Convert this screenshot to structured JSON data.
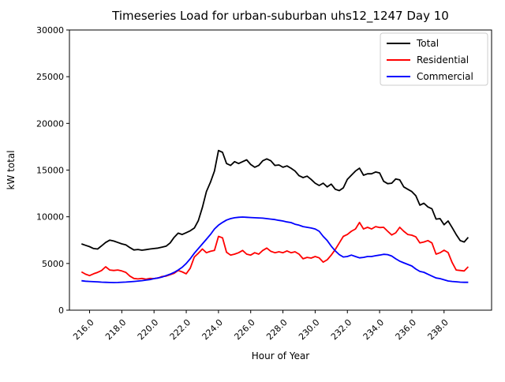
{
  "window": {
    "background": "#ffffff"
  },
  "chart_data": {
    "type": "line",
    "title": "Timeseries Load for urban-suburban uhs12_1247  Day 10",
    "xlabel": "Hour of Year",
    "ylabel": "kW total",
    "xlim": [
      214.75,
      240.95
    ],
    "ylim": [
      0,
      30000
    ],
    "grid": false,
    "legend_position": "upper right",
    "legend_border_color": "#cccccc",
    "axis_color": "#000000",
    "xticks": {
      "values": [
        216,
        218,
        220,
        222,
        224,
        226,
        228,
        230,
        232,
        234,
        236,
        238
      ],
      "labels": [
        "216.0",
        "218.0",
        "220.0",
        "222.0",
        "224.0",
        "226.0",
        "228.0",
        "230.0",
        "232.0",
        "234.0",
        "236.0",
        "238.0"
      ],
      "rotation": 45
    },
    "yticks": {
      "values": [
        0,
        5000,
        10000,
        15000,
        20000,
        25000,
        30000
      ],
      "labels": [
        "0",
        "5000",
        "10000",
        "15000",
        "20000",
        "25000",
        "30000"
      ]
    },
    "x": [
      215.5,
      215.75,
      216.0,
      216.25,
      216.5,
      216.75,
      217.0,
      217.25,
      217.5,
      217.75,
      218.0,
      218.25,
      218.5,
      218.75,
      219.0,
      219.25,
      219.5,
      219.75,
      220.0,
      220.25,
      220.5,
      220.75,
      221.0,
      221.25,
      221.5,
      221.75,
      222.0,
      222.25,
      222.5,
      222.75,
      223.0,
      223.25,
      223.5,
      223.75,
      224.0,
      224.25,
      224.5,
      224.75,
      225.0,
      225.25,
      225.5,
      225.75,
      226.0,
      226.25,
      226.5,
      226.75,
      227.0,
      227.25,
      227.5,
      227.75,
      228.0,
      228.25,
      228.5,
      228.75,
      229.0,
      229.25,
      229.5,
      229.75,
      230.0,
      230.25,
      230.5,
      230.75,
      231.0,
      231.25,
      231.5,
      231.75,
      232.0,
      232.25,
      232.5,
      232.75,
      233.0,
      233.25,
      233.5,
      233.75,
      234.0,
      234.25,
      234.5,
      234.75,
      235.0,
      235.25,
      235.5,
      235.75,
      236.0,
      236.25,
      236.5,
      236.75,
      237.0,
      237.25,
      237.5,
      237.75,
      238.0,
      238.25,
      238.5,
      238.75,
      239.0,
      239.25,
      239.5
    ],
    "series": [
      {
        "name": "Total",
        "color": "#000000",
        "values": [
          7100,
          6950,
          6800,
          6600,
          6550,
          6900,
          7250,
          7500,
          7400,
          7250,
          7100,
          7000,
          6700,
          6450,
          6500,
          6420,
          6480,
          6550,
          6600,
          6650,
          6750,
          6850,
          7200,
          7800,
          8250,
          8100,
          8300,
          8500,
          8800,
          9600,
          11000,
          12700,
          13700,
          14900,
          17100,
          16900,
          15700,
          15500,
          15900,
          15700,
          15900,
          16100,
          15600,
          15300,
          15500,
          16000,
          16200,
          16000,
          15500,
          15550,
          15300,
          15450,
          15200,
          14900,
          14400,
          14200,
          14350,
          14000,
          13600,
          13350,
          13600,
          13200,
          13500,
          12950,
          12800,
          13100,
          14000,
          14450,
          14900,
          15200,
          14450,
          14600,
          14600,
          14800,
          14700,
          13800,
          13550,
          13600,
          14050,
          13950,
          13200,
          12950,
          12700,
          12250,
          11250,
          11450,
          11050,
          10850,
          9750,
          9800,
          9150,
          9550,
          8850,
          8100,
          7450,
          7300,
          7800
        ]
      },
      {
        "name": "Residential",
        "color": "#ff0000",
        "values": [
          4100,
          3850,
          3700,
          3900,
          4050,
          4250,
          4650,
          4300,
          4250,
          4300,
          4200,
          4050,
          3650,
          3400,
          3350,
          3400,
          3320,
          3400,
          3380,
          3450,
          3600,
          3650,
          3800,
          3950,
          4250,
          4100,
          3900,
          4500,
          5700,
          6100,
          6550,
          6150,
          6300,
          6400,
          7900,
          7750,
          6200,
          5900,
          6000,
          6150,
          6400,
          6000,
          5900,
          6150,
          6000,
          6400,
          6650,
          6300,
          6150,
          6250,
          6150,
          6350,
          6150,
          6250,
          6000,
          5500,
          5650,
          5580,
          5750,
          5600,
          5150,
          5400,
          5900,
          6500,
          7200,
          7900,
          8100,
          8450,
          8700,
          9400,
          8700,
          8870,
          8700,
          8950,
          8850,
          8870,
          8450,
          8050,
          8280,
          8870,
          8450,
          8100,
          8030,
          7850,
          7200,
          7300,
          7450,
          7200,
          6000,
          6150,
          6420,
          6170,
          5100,
          4300,
          4250,
          4200,
          4650
        ]
      },
      {
        "name": "Commercial",
        "color": "#0000ff",
        "values": [
          3150,
          3100,
          3080,
          3050,
          3030,
          3000,
          2980,
          2970,
          2960,
          2970,
          2990,
          3010,
          3040,
          3080,
          3120,
          3160,
          3220,
          3280,
          3380,
          3450,
          3550,
          3700,
          3850,
          4050,
          4300,
          4600,
          5000,
          5500,
          6100,
          6600,
          7100,
          7600,
          8100,
          8700,
          9100,
          9400,
          9650,
          9800,
          9900,
          9950,
          9970,
          9950,
          9920,
          9900,
          9880,
          9850,
          9800,
          9750,
          9700,
          9620,
          9550,
          9450,
          9380,
          9200,
          9100,
          8950,
          8870,
          8800,
          8700,
          8450,
          7900,
          7450,
          6850,
          6350,
          5950,
          5700,
          5750,
          5900,
          5750,
          5600,
          5650,
          5750,
          5750,
          5830,
          5900,
          5980,
          5950,
          5800,
          5500,
          5250,
          5070,
          4900,
          4730,
          4400,
          4150,
          4060,
          3850,
          3650,
          3450,
          3380,
          3250,
          3130,
          3080,
          3040,
          3000,
          2980,
          2980
        ]
      }
    ]
  }
}
